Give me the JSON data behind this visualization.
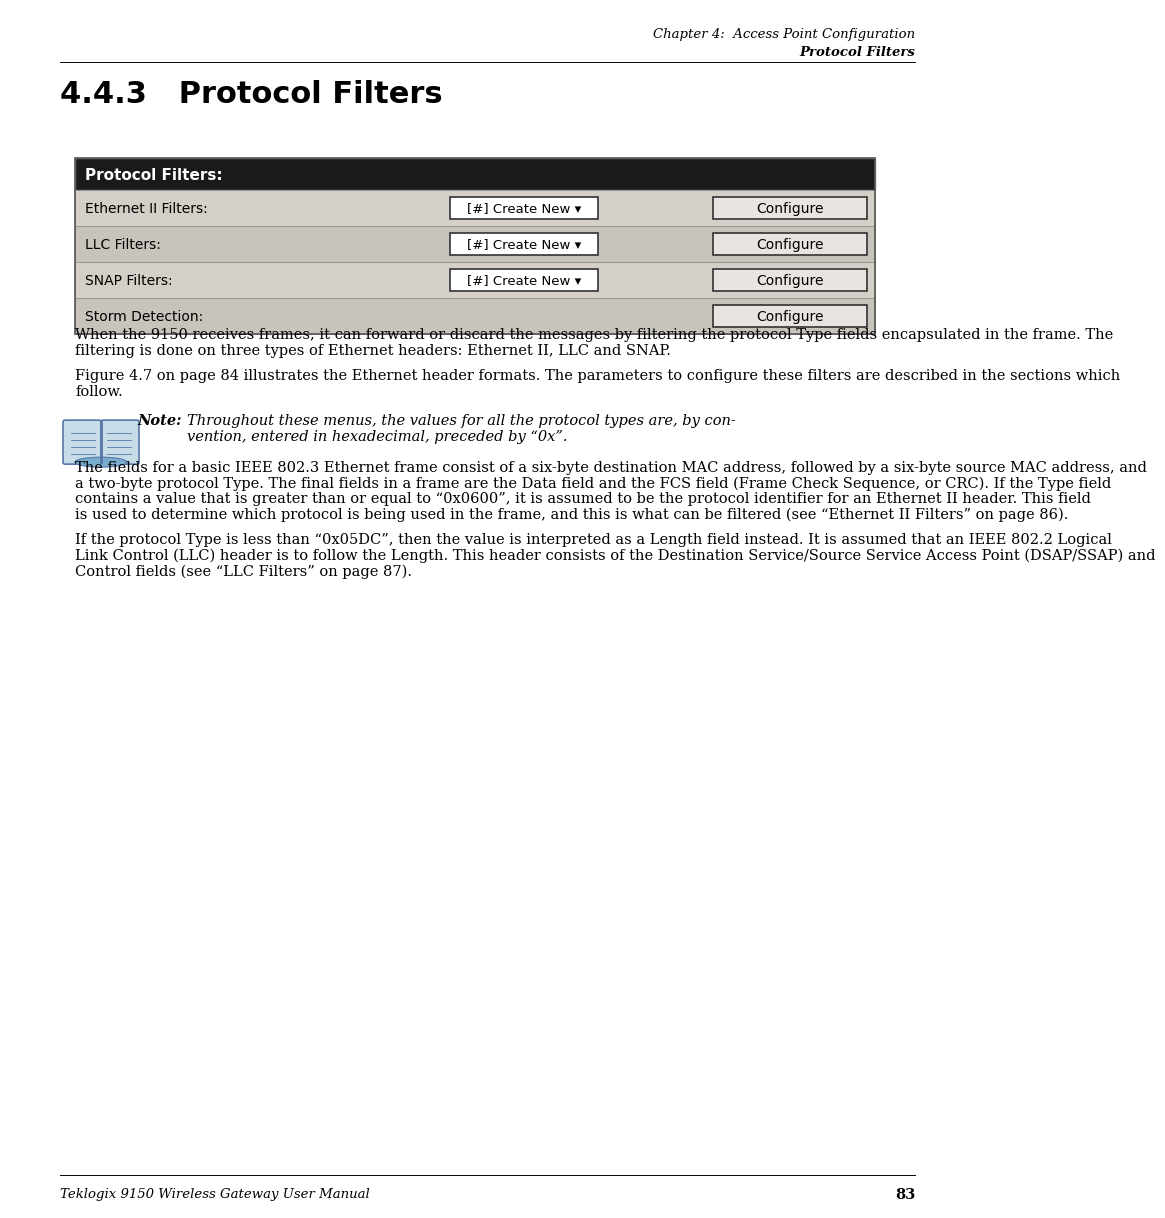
{
  "page_bg": "#ffffff",
  "header_line1": "Chapter 4:  Access Point Configuration",
  "header_line2": "Protocol Filters",
  "section_title": "4.4.3   Protocol Filters",
  "table": {
    "header_text": "Protocol Filters:",
    "header_bg": "#1a1a1a",
    "header_text_color": "#ffffff",
    "row_bg_odd": "#d4d0c8",
    "row_bg_even": "#c8c4bc",
    "rows": [
      {
        "label": "Ethernet II Filters:",
        "has_dropdown": true,
        "dropdown_text": "[#] Create New ▾",
        "has_configure": true
      },
      {
        "label": "LLC Filters:",
        "has_dropdown": true,
        "dropdown_text": "[#] Create New ▾",
        "has_configure": true
      },
      {
        "label": "SNAP Filters:",
        "has_dropdown": true,
        "dropdown_text": "[#] Create New ▾",
        "has_configure": true
      },
      {
        "label": "Storm Detection:",
        "has_dropdown": false,
        "dropdown_text": "",
        "has_configure": true
      }
    ],
    "configure_text": "Configure",
    "border_color": "#888888"
  },
  "para1": "When the 9150 receives frames, it can forward or discard the messages by filtering the protocol Type fields encapsulated in the frame. The filtering is done on three types of Ethernet headers: Ethernet II, LLC and SNAP.",
  "para2": "Figure 4.7 on page 84 illustrates the Ethernet header formats. The parameters to configure these filters are described in the sections which follow.",
  "note_label": "Note:",
  "note_line1": "Throughout these menus, the values for all the protocol types are, by con-",
  "note_line2": "vention, entered in hexadecimal, preceded by “0x”.",
  "para3": "The fields for a basic IEEE 802.3 Ethernet frame consist of a six-byte destination MAC address, followed by a six-byte source MAC address, and a two-byte protocol Type. The final fields in a frame are the Data field and the FCS field (Frame Check Sequence, or CRC). If the Type field contains a value that is greater than or equal to “0x0600”, it is assumed to be the protocol identifier for an Ethernet II header. This field is used to determine which protocol is being used in the frame, and this is what can be filtered (see “Ethernet II Filters” on page 86).",
  "para4": "If the protocol Type is less than “0x05DC”, then the value is interpreted as a Length field instead. It is assumed that an IEEE 802.2 Logical Link Control (LLC) header is to follow the Length. This header consists of the Destination Service/Source Service Access Point (DSAP/SSAP) and Control fields (see “LLC Filters” on page 87).",
  "footer_text": "Teklogix 9150 Wireless Gateway User Manual",
  "footer_page": "83",
  "body_font_size": 10.5,
  "header_font_size": 9.5,
  "section_title_size": 22,
  "table_font_size": 10,
  "note_font_size": 10.5,
  "footer_font_size": 9.5
}
